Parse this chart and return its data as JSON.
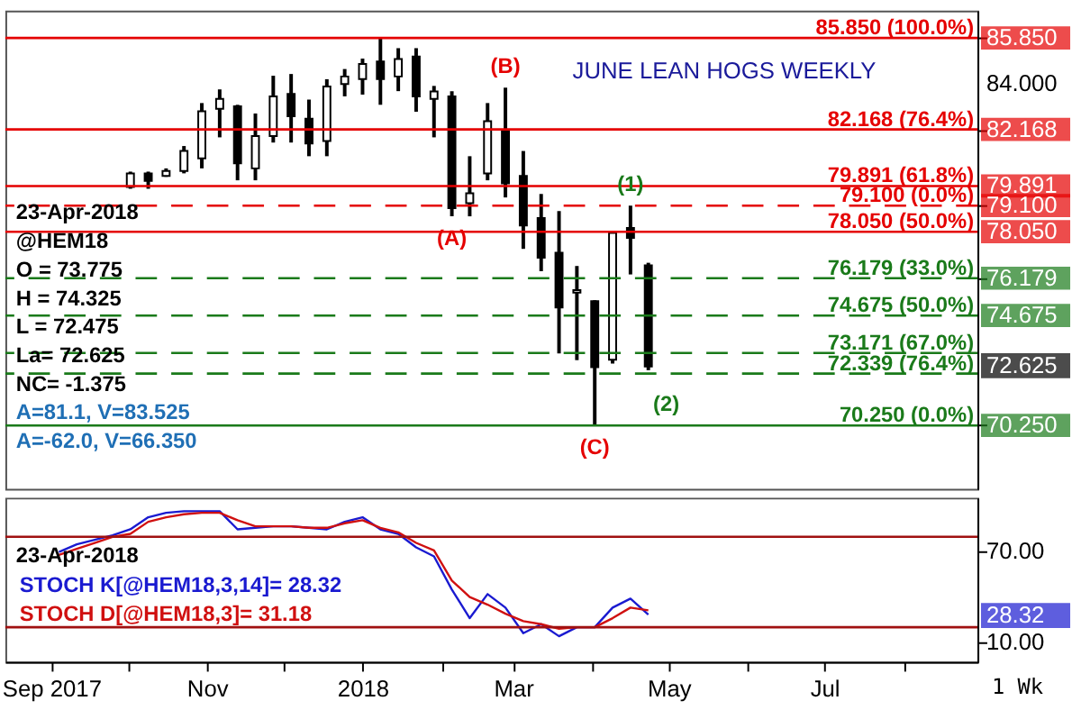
{
  "chart_data": [
    {
      "type": "candlestick",
      "title": "JUNE LEAN HOGS WEEKLY",
      "x": [
        "2017-10-02",
        "2017-10-09",
        "2017-10-16",
        "2017-10-23",
        "2017-10-30",
        "2017-11-06",
        "2017-11-13",
        "2017-11-20",
        "2017-11-27",
        "2017-12-04",
        "2017-12-11",
        "2017-12-18",
        "2017-12-25",
        "2018-01-01",
        "2018-01-08",
        "2018-01-15",
        "2018-01-22",
        "2018-01-29",
        "2018-02-05",
        "2018-02-12",
        "2018-02-19",
        "2018-02-26",
        "2018-03-05",
        "2018-03-12",
        "2018-03-19",
        "2018-03-26",
        "2018-04-02",
        "2018-04-09",
        "2018-04-16",
        "2018-04-23"
      ],
      "ohlc": [
        [
          79.85,
          80.47,
          79.78,
          80.4
        ],
        [
          80.4,
          80.47,
          79.78,
          80.1
        ],
        [
          80.3,
          80.6,
          80.26,
          80.5
        ],
        [
          80.5,
          81.5,
          80.4,
          81.3
        ],
        [
          81.0,
          83.23,
          80.6,
          82.9
        ],
        [
          83.0,
          83.78,
          81.85,
          83.4
        ],
        [
          83.1,
          83.16,
          80.12,
          80.8
        ],
        [
          80.6,
          82.81,
          80.12,
          81.9
        ],
        [
          81.9,
          84.33,
          81.64,
          83.5
        ],
        [
          83.6,
          84.4,
          81.64,
          82.7
        ],
        [
          82.6,
          83.37,
          81.09,
          81.6
        ],
        [
          81.7,
          84.19,
          81.09,
          83.9
        ],
        [
          84.0,
          84.6,
          83.5,
          84.3
        ],
        [
          84.2,
          85.02,
          83.57,
          84.8
        ],
        [
          84.9,
          85.85,
          83.16,
          84.2
        ],
        [
          84.3,
          85.44,
          83.71,
          85.0
        ],
        [
          85.1,
          85.44,
          82.88,
          83.5
        ],
        [
          83.4,
          83.92,
          81.85,
          83.7
        ],
        [
          83.5,
          83.71,
          78.67,
          79.0
        ],
        [
          79.2,
          81.09,
          78.67,
          79.6
        ],
        [
          80.4,
          83.23,
          80.12,
          82.5
        ],
        [
          82.1,
          83.85,
          79.43,
          80.0
        ],
        [
          80.3,
          81.3,
          77.36,
          78.3
        ],
        [
          78.6,
          79.57,
          76.46,
          77.0
        ],
        [
          77.2,
          78.88,
          73.15,
          75.0
        ],
        [
          75.6,
          76.67,
          72.88,
          75.7
        ],
        [
          75.25,
          75.29,
          70.25,
          72.6
        ],
        [
          72.9,
          78.05,
          72.74,
          78.0
        ],
        [
          78.2,
          79.1,
          76.33,
          77.8
        ],
        [
          76.7,
          76.8,
          72.475,
          72.625
        ]
      ],
      "xlim": [
        "2017-08-14",
        "2018-08-30"
      ],
      "ylim": [
        67.7,
        86.95
      ],
      "yticks": [
        {
          "value": 70.25,
          "label": "70.250"
        },
        {
          "value": 74.675,
          "label": "74.675"
        },
        {
          "value": 76.179,
          "label": "76.179"
        },
        {
          "value": 78.05,
          "label": "78.050"
        },
        {
          "value": 79.1,
          "label": "79.100"
        },
        {
          "value": 79.891,
          "label": "79.891"
        },
        {
          "value": 82.168,
          "label": "82.168"
        },
        {
          "value": 84,
          "label": "84.000"
        },
        {
          "value": 85.85,
          "label": "85.850"
        }
      ],
      "tick_labels": "y",
      "grid": false,
      "ref_lines": [
        {
          "axis": "y",
          "value": 85.85,
          "label": "85.850 (100.0%)",
          "color": "#e50000",
          "line_style": "solid"
        },
        {
          "axis": "y",
          "value": 82.168,
          "label": "82.168 (76.4%)",
          "color": "#e50000",
          "line_style": "solid"
        },
        {
          "axis": "y",
          "value": 79.891,
          "label": "79.891 (61.8%)",
          "color": "#e50000",
          "line_style": "solid"
        },
        {
          "axis": "y",
          "value": 79.1,
          "label": "79.100 (0.0%)",
          "color": "#e50000",
          "line_style": "dashed"
        },
        {
          "axis": "y",
          "value": 78.05,
          "label": "78.050 (50.0%)",
          "color": "#e50000",
          "line_style": "solid"
        },
        {
          "axis": "y",
          "value": 76.179,
          "label": "76.179 (33.0%)",
          "color": "#1a7a1a",
          "line_style": "dashed"
        },
        {
          "axis": "y",
          "value": 74.675,
          "label": "74.675 (50.0%)",
          "color": "#1a7a1a",
          "line_style": "dashed"
        },
        {
          "axis": "y",
          "value": 73.171,
          "label": "73.171 (67.0%)",
          "color": "#1a7a1a",
          "line_style": "dashed"
        },
        {
          "axis": "y",
          "value": 72.339,
          "label": "72.339 (76.4%)",
          "color": "#1a7a1a",
          "line_style": "dashed"
        },
        {
          "axis": "y",
          "value": 70.25,
          "label": "70.250 (0.0%)",
          "color": "#1a7a1a",
          "line_style": "solid"
        }
      ],
      "annotations": [
        "23-Apr-2018",
        "@HEM18",
        "O = 73.775",
        "H = 74.325",
        "L = 72.475",
        "La= 72.625",
        "NC= -1.375",
        "A=81.1, V=83.525",
        "A=-62.0, V=66.350",
        {
          "text": "(A)",
          "x": "2018-02-05",
          "y": 78.67
        },
        {
          "text": "(B)",
          "x": "2018-02-26",
          "y": 83.85
        },
        {
          "text": "(C)",
          "x": "2018-04-02",
          "y": 70.25
        },
        {
          "text": "(1)",
          "x": "2018-04-16",
          "y": 79.1
        },
        {
          "text": "(2)",
          "x": "2018-04-30",
          "y": 70.25
        },
        "72.625"
      ]
    },
    {
      "type": "line",
      "x": [
        "2017-09-04",
        "2017-09-11",
        "2017-09-18",
        "2017-09-25",
        "2017-10-02",
        "2017-10-09",
        "2017-10-16",
        "2017-10-23",
        "2017-10-30",
        "2017-11-06",
        "2017-11-13",
        "2017-11-20",
        "2017-11-27",
        "2017-12-04",
        "2017-12-11",
        "2017-12-18",
        "2017-12-25",
        "2018-01-01",
        "2018-01-08",
        "2018-01-15",
        "2018-01-22",
        "2018-01-29",
        "2018-02-05",
        "2018-02-12",
        "2018-02-19",
        "2018-02-26",
        "2018-03-05",
        "2018-03-12",
        "2018-03-19",
        "2018-03-26",
        "2018-04-02",
        "2018-04-09",
        "2018-04-16",
        "2018-04-23"
      ],
      "series": [
        {
          "name": "STOCH K[@HEM18,3,14]= 28.32",
          "color": "#1a1ad0",
          "values": [
            70,
            75,
            78,
            81,
            85,
            93,
            96,
            97,
            97,
            97,
            85,
            86,
            87,
            87,
            86,
            85,
            90,
            93,
            85,
            82,
            73,
            67,
            45,
            26,
            42,
            33,
            16,
            22,
            14,
            20,
            20,
            33,
            39,
            28.32
          ]
        },
        {
          "name": "STOCH D[@HEM18,3]= 31.18",
          "color": "#d01010",
          "values": [
            68,
            72,
            76,
            80,
            82,
            90,
            93,
            95,
            96,
            96,
            91,
            87,
            87,
            87,
            86,
            86,
            89,
            91,
            86,
            83,
            76,
            71,
            51,
            40,
            35,
            29,
            24,
            22,
            19,
            20,
            20,
            26,
            33,
            31.18
          ]
        }
      ],
      "xlim": [
        "2017-08-14",
        "2018-08-30"
      ],
      "xticks": [
        {
          "value": "2017-09-01",
          "label": "Sep 2017"
        },
        {
          "value": "2017-10-01",
          "label": null
        },
        {
          "value": "2017-11-01",
          "label": "Nov"
        },
        {
          "value": "2017-12-01",
          "label": null
        },
        {
          "value": "2018-01-01",
          "label": "2018"
        },
        {
          "value": "2018-02-01",
          "label": null
        },
        {
          "value": "2018-03-01",
          "label": "Mar"
        },
        {
          "value": "2018-04-01",
          "label": null
        },
        {
          "value": "2018-05-01",
          "label": "May"
        },
        {
          "value": "2018-06-01",
          "label": null
        },
        {
          "value": "2018-07-01",
          "label": "Jul"
        },
        {
          "value": "2018-08-01",
          "label": null
        }
      ],
      "ylim": [
        -3,
        106
      ],
      "yticks": [
        {
          "value": 10,
          "label": "10.00"
        },
        {
          "value": 70,
          "label": "70.00"
        }
      ],
      "grid": false,
      "legend": "left",
      "marker": "none",
      "line_style": "solid",
      "ref_lines": [
        {
          "axis": "y",
          "value": 80,
          "color": "#a01010"
        },
        {
          "axis": "y",
          "value": 20,
          "color": "#a01010"
        }
      ],
      "annotations": [
        "23-Apr-2018",
        "1 Wk",
        "28.32"
      ]
    }
  ]
}
